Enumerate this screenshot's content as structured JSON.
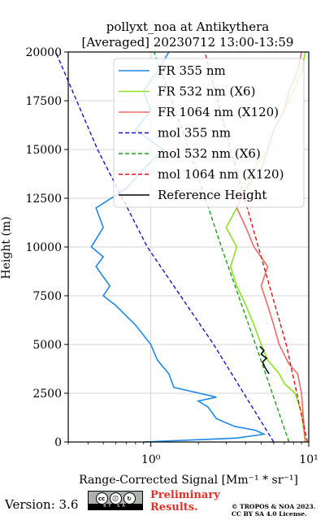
{
  "chart_data": {
    "type": "line",
    "title_lines": [
      "pollyxt_noa at Antikythera",
      "[Averaged] 20230712 13:00-13:59"
    ],
    "xlabel": "Range-Corrected Signal [Mm⁻¹ * sr⁻¹]",
    "ylabel": "Height (m)",
    "x_scale": "log",
    "xlim": [
      0.3,
      10
    ],
    "ylim": [
      0,
      20000
    ],
    "y_ticks": [
      0,
      2500,
      5000,
      7500,
      10000,
      12500,
      15000,
      17500,
      20000
    ],
    "x_ticks": [
      1,
      10
    ],
    "x_tick_labels": [
      "10⁰",
      "10¹"
    ],
    "grid": true,
    "legend_position": "upper-right",
    "series": [
      {
        "name": "FR 355 nm",
        "color": "#1e88e5",
        "style": "solid",
        "heights": [
          0,
          200,
          400,
          600,
          800,
          1200,
          1800,
          2100,
          2300,
          2800,
          3500,
          4200,
          5000,
          6000,
          7000,
          7500,
          8000,
          9000,
          9500,
          10000,
          11000,
          12000,
          13000,
          14000,
          15000,
          16000,
          17000,
          18000,
          19000,
          20000
        ],
        "values": [
          0.9,
          3.5,
          5.2,
          4.6,
          3.4,
          2.6,
          2.3,
          2.0,
          2.6,
          1.4,
          1.3,
          1.1,
          1.0,
          0.8,
          0.6,
          0.5,
          0.55,
          0.45,
          0.5,
          0.42,
          0.5,
          0.45,
          0.7,
          0.9,
          1.2,
          0.8,
          1.0,
          0.9,
          1.1,
          1.3
        ]
      },
      {
        "name": "FR 532 nm (X6)",
        "color": "#8ee31e",
        "style": "solid",
        "heights": [
          0,
          1500,
          2500,
          3000,
          3500,
          4200,
          5000,
          6000,
          7000,
          8000,
          9000,
          10000,
          11000,
          12000,
          13000,
          14000,
          15000,
          16000,
          17000,
          18000,
          19000,
          20000
        ],
        "values": [
          9.5,
          9.0,
          8.2,
          7.0,
          6.5,
          5.5,
          5.0,
          4.5,
          4.0,
          3.5,
          3.2,
          3.5,
          3.0,
          3.5,
          4.0,
          4.5,
          5.5,
          6.0,
          7.0,
          8.0,
          9.0,
          9.5
        ]
      },
      {
        "name": "FR 1064 nm (X120)",
        "color": "#f06a6a",
        "style": "solid",
        "heights": [
          0,
          2500,
          3500,
          4000,
          5000,
          6000,
          7000,
          8000,
          9000,
          10000,
          11000,
          12000,
          13000,
          14000,
          15000,
          16000,
          17000,
          18000,
          19000,
          20000
        ],
        "values": [
          9.5,
          9.0,
          8.5,
          7.5,
          6.5,
          6.0,
          5.5,
          5.0,
          5.5,
          4.5,
          4.0,
          3.5,
          4.0,
          5.0,
          5.5,
          6.0,
          7.0,
          7.5,
          8.5,
          9.0
        ]
      },
      {
        "name": "mol 355 nm",
        "color": "#1515c8",
        "style": "dashed",
        "heights": [
          0,
          5000,
          10000,
          15000,
          20000
        ],
        "values": [
          6.0,
          2.5,
          0.95,
          0.46,
          0.25
        ]
      },
      {
        "name": "mol 532 nm (X6)",
        "color": "#17a217",
        "style": "dashed",
        "heights": [
          0,
          5000,
          10000,
          15000,
          20000
        ],
        "values": [
          7.5,
          4.6,
          2.8,
          1.75,
          1.05
        ]
      },
      {
        "name": "mol 1064 nm (X120)",
        "color": "#d41616",
        "style": "dashed",
        "heights": [
          0,
          5000,
          10000,
          15000,
          20000
        ],
        "values": [
          9.8,
          7.2,
          4.8,
          3.2,
          2.2
        ]
      },
      {
        "name": "Reference Height",
        "color": "#000000",
        "style": "solid",
        "heights": [
          3500,
          3800,
          4100,
          4300,
          4500,
          4700,
          4900
        ],
        "values": [
          5.6,
          5.3,
          5.1,
          5.4,
          5.0,
          5.2,
          4.9
        ]
      }
    ]
  },
  "footer": {
    "version": "Version: 3.6",
    "license_badge": {
      "icons": [
        "cc",
        "ⓘ",
        "↻"
      ],
      "strip": "BY  SA"
    },
    "preliminary_line1": "Preliminary",
    "preliminary_line2": "Results.",
    "copyright_line1": "© TROPOS & NOA 2023.",
    "copyright_line2": "CC BY SA 4.0 License."
  }
}
